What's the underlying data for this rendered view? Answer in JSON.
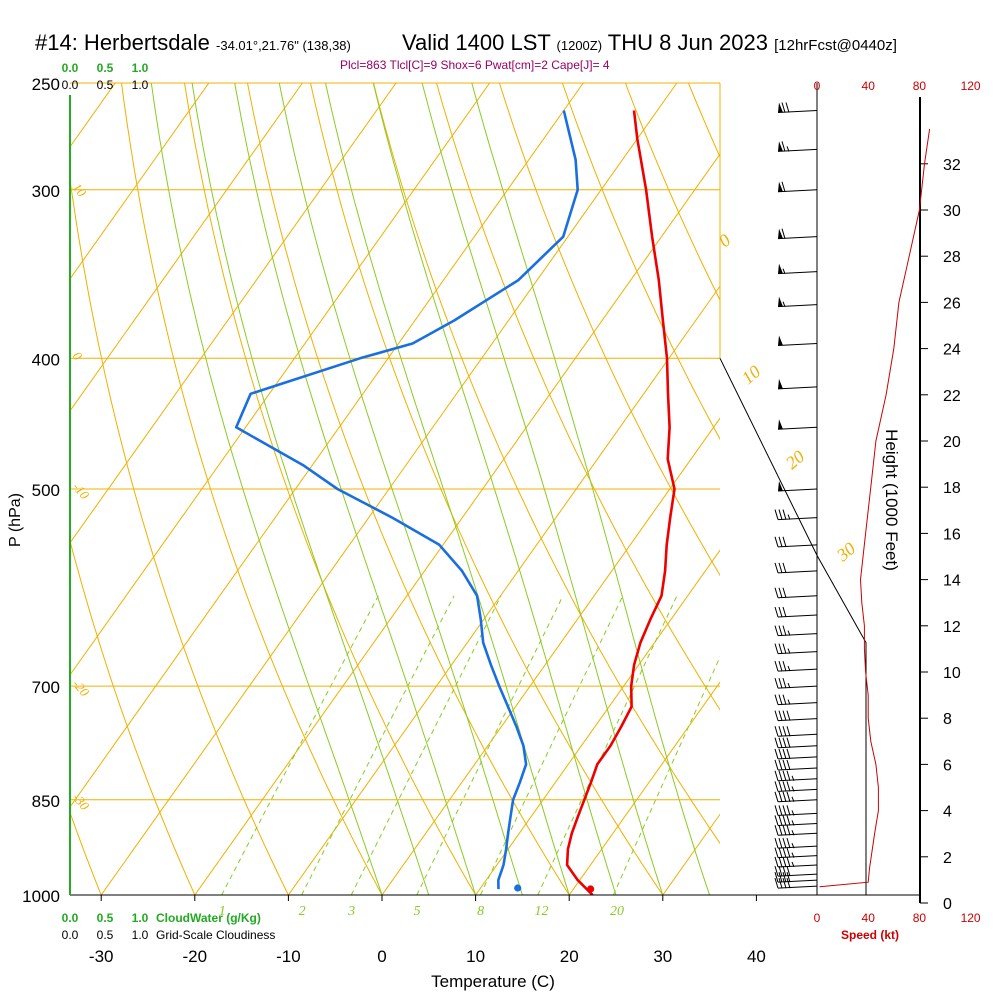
{
  "header": {
    "station": "#14: Herbertsdale",
    "location": "-34.01°,21.76\" (138,38)",
    "valid": "Valid 1400 LST",
    "zulu": "(1200Z)",
    "date": "THU 8 Jun 2023",
    "forecast": "[12hrFcst@0440z]",
    "indices": "Plcl=863 Tlcl[C]=9 Shox=6 Pwat[cm]=2 Cape[J]= 4"
  },
  "colors": {
    "temperature": "#ee0000",
    "dewpoint": "#1a6fe0",
    "grid": "#f0b000",
    "moist": "#88cc22",
    "cloud": "#22aa22",
    "speed": "#cc0000"
  },
  "chart_data": {
    "type": "line",
    "xlabel": "Temperature (C)",
    "ylabel": "P (hPa)",
    "xlim": [
      -34,
      36
    ],
    "ylim": [
      1000,
      250
    ],
    "x_ticks": [
      "-30",
      "-20",
      "-10",
      "0",
      "10",
      "20",
      "30",
      "40"
    ],
    "pressure_ticks": [
      "250",
      "300",
      "400",
      "500",
      "700",
      "850",
      "1000"
    ],
    "series": [
      {
        "points": [
          {
            "p": 1000,
            "t": 22.5
          },
          {
            "p": 975,
            "t": 19.8
          },
          {
            "p": 950,
            "t": 17.5
          },
          {
            "p": 925,
            "t": 16.4
          },
          {
            "p": 900,
            "t": 15.6
          },
          {
            "p": 875,
            "t": 15.0
          },
          {
            "p": 850,
            "t": 14.4
          },
          {
            "p": 825,
            "t": 13.8
          },
          {
            "p": 800,
            "t": 13.1
          },
          {
            "p": 775,
            "t": 13.1
          },
          {
            "p": 750,
            "t": 12.8
          },
          {
            "p": 725,
            "t": 12.4
          },
          {
            "p": 700,
            "t": 10.8
          },
          {
            "p": 675,
            "t": 9.5
          },
          {
            "p": 650,
            "t": 8.5
          },
          {
            "p": 625,
            "t": 7.8
          },
          {
            "p": 600,
            "t": 7.2
          },
          {
            "p": 575,
            "t": 5.7
          },
          {
            "p": 550,
            "t": 3.9
          },
          {
            "p": 525,
            "t": 2.2
          },
          {
            "p": 500,
            "t": 0.5
          },
          {
            "p": 475,
            "t": -2.5
          },
          {
            "p": 450,
            "t": -4.7
          },
          {
            "p": 425,
            "t": -7.4
          },
          {
            "p": 400,
            "t": -10.2
          },
          {
            "p": 375,
            "t": -13.5
          },
          {
            "p": 350,
            "t": -17.0
          },
          {
            "p": 325,
            "t": -21.0
          },
          {
            "p": 300,
            "t": -25.2
          },
          {
            "p": 275,
            "t": -30.0
          },
          {
            "p": 262,
            "t": -32.5
          }
        ]
      },
      {
        "points": [
          {
            "p": 990,
            "t": 12.0
          },
          {
            "p": 975,
            "t": 11.3
          },
          {
            "p": 950,
            "t": 10.7
          },
          {
            "p": 925,
            "t": 9.8
          },
          {
            "p": 900,
            "t": 8.8
          },
          {
            "p": 875,
            "t": 7.8
          },
          {
            "p": 850,
            "t": 6.8
          },
          {
            "p": 825,
            "t": 6.2
          },
          {
            "p": 800,
            "t": 5.5
          },
          {
            "p": 775,
            "t": 3.8
          },
          {
            "p": 750,
            "t": 1.6
          },
          {
            "p": 725,
            "t": -0.8
          },
          {
            "p": 700,
            "t": -3.3
          },
          {
            "p": 675,
            "t": -5.8
          },
          {
            "p": 650,
            "t": -8.3
          },
          {
            "p": 625,
            "t": -10.3
          },
          {
            "p": 600,
            "t": -12.5
          },
          {
            "p": 575,
            "t": -16.0
          },
          {
            "p": 550,
            "t": -20.4
          },
          {
            "p": 525,
            "t": -27.5
          },
          {
            "p": 500,
            "t": -35.5
          },
          {
            "p": 480,
            "t": -41.0
          },
          {
            "p": 450,
            "t": -51.0
          },
          {
            "p": 425,
            "t": -52.0
          },
          {
            "p": 400,
            "t": -43.0
          },
          {
            "p": 390,
            "t": -38.5
          },
          {
            "p": 375,
            "t": -35.8
          },
          {
            "p": 350,
            "t": -32.0
          },
          {
            "p": 325,
            "t": -30.5
          },
          {
            "p": 300,
            "t": -32.5
          },
          {
            "p": 285,
            "t": -35.0
          },
          {
            "p": 262,
            "t": -40.0
          }
        ]
      }
    ],
    "surface_markers": [
      {
        "p": 1000,
        "t": 22.5
      },
      {
        "p": 1000,
        "t": 14.5
      }
    ],
    "isotherm_labels": [
      "10",
      "0",
      "-10",
      "-20",
      "-30"
    ],
    "dry_adiabat_labels": [
      "0",
      "10",
      "20",
      "30"
    ],
    "mixing_ratio_labels": [
      {
        "w": 1,
        "label": "1"
      },
      {
        "w": 2,
        "label": "2"
      },
      {
        "w": 3,
        "label": "3"
      },
      {
        "w": 5,
        "label": "5"
      },
      {
        "w": 8,
        "label": "8"
      },
      {
        "w": 12,
        "label": "12"
      },
      {
        "w": 20,
        "label": "20"
      }
    ],
    "height_axis": {
      "label": "Height (1000 Feet)",
      "ticks": [
        "0",
        "2",
        "4",
        "6",
        "8",
        "10",
        "12",
        "14",
        "16",
        "18",
        "20",
        "22",
        "24",
        "26",
        "28",
        "30",
        "32"
      ]
    },
    "speed_axis": {
      "label": "Speed (kt)",
      "ticks": [
        "0",
        "40",
        "80",
        "120"
      ]
    },
    "cloud_scales": {
      "cloudwater_ticks": [
        "0.0",
        "0.5",
        "1.0"
      ],
      "cloudiness_ticks": [
        "0.0",
        "0.5",
        "1.0"
      ],
      "cloudwater_label": "CloudWater (g/Kg)",
      "cloudiness_label": "Grid-Scale Cloudiness"
    },
    "wind_speed_profile": [
      {
        "h": 0.7,
        "s": 2
      },
      {
        "h": 0.9,
        "s": 40
      },
      {
        "h": 1.5,
        "s": 41
      },
      {
        "h": 3,
        "s": 45
      },
      {
        "h": 4,
        "s": 48
      },
      {
        "h": 5,
        "s": 48
      },
      {
        "h": 6,
        "s": 46
      },
      {
        "h": 7,
        "s": 42
      },
      {
        "h": 8,
        "s": 40
      },
      {
        "h": 9,
        "s": 40
      },
      {
        "h": 10,
        "s": 38
      },
      {
        "h": 11,
        "s": 37
      },
      {
        "h": 12,
        "s": 37
      },
      {
        "h": 13,
        "s": 35
      },
      {
        "h": 14,
        "s": 34
      },
      {
        "h": 16,
        "s": 38
      },
      {
        "h": 18,
        "s": 42
      },
      {
        "h": 20,
        "s": 46
      },
      {
        "h": 22,
        "s": 54
      },
      {
        "h": 24,
        "s": 60
      },
      {
        "h": 26,
        "s": 64
      },
      {
        "h": 28,
        "s": 72
      },
      {
        "h": 30,
        "s": 80
      },
      {
        "h": 32,
        "s": 84
      },
      {
        "h": 33.5,
        "s": 88
      }
    ],
    "wind_barbs": [
      {
        "p": 985,
        "s": 40
      },
      {
        "p": 975,
        "s": 40
      },
      {
        "p": 965,
        "s": 40
      },
      {
        "p": 950,
        "s": 45
      },
      {
        "p": 935,
        "s": 45
      },
      {
        "p": 920,
        "s": 45
      },
      {
        "p": 900,
        "s": 45
      },
      {
        "p": 885,
        "s": 45
      },
      {
        "p": 870,
        "s": 45
      },
      {
        "p": 850,
        "s": 45
      },
      {
        "p": 835,
        "s": 45
      },
      {
        "p": 820,
        "s": 45
      },
      {
        "p": 805,
        "s": 40
      },
      {
        "p": 790,
        "s": 40
      },
      {
        "p": 775,
        "s": 40
      },
      {
        "p": 760,
        "s": 40
      },
      {
        "p": 740,
        "s": 40
      },
      {
        "p": 720,
        "s": 35
      },
      {
        "p": 700,
        "s": 35
      },
      {
        "p": 680,
        "s": 35
      },
      {
        "p": 660,
        "s": 35
      },
      {
        "p": 640,
        "s": 35
      },
      {
        "p": 620,
        "s": 30
      },
      {
        "p": 600,
        "s": 30
      },
      {
        "p": 575,
        "s": 30
      },
      {
        "p": 550,
        "s": 30
      },
      {
        "p": 525,
        "s": 35
      },
      {
        "p": 500,
        "s": 50
      },
      {
        "p": 450,
        "s": 50
      },
      {
        "p": 420,
        "s": 50
      },
      {
        "p": 390,
        "s": 50
      },
      {
        "p": 365,
        "s": 55
      },
      {
        "p": 345,
        "s": 55
      },
      {
        "p": 325,
        "s": 60
      },
      {
        "p": 300,
        "s": 60
      },
      {
        "p": 280,
        "s": 65
      },
      {
        "p": 262,
        "s": 70
      }
    ]
  }
}
